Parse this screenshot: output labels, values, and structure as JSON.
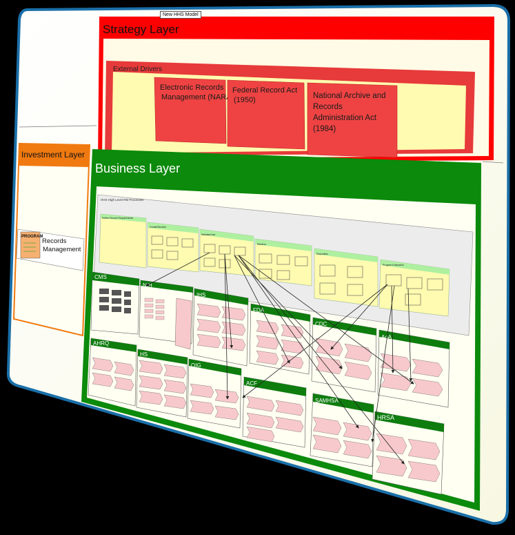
{
  "diagram": {
    "tooltip": "New HHS Model",
    "strategy": {
      "title": "Strategy Layer",
      "drivers_title": "External Drivers",
      "drivers": [
        [
          "Electronic Records",
          "Management (NARA)"
        ],
        [
          "Federal Record Act",
          "(1950)"
        ],
        [
          "National Archive and",
          " Records",
          "Administration Act",
          "(1984)"
        ]
      ]
    },
    "investment": {
      "title": "Investment Layer",
      "program_badge": "PROGRAM",
      "program_label": [
        "Records",
        "Management"
      ]
    },
    "business": {
      "title": "Business Layer",
      "processes_title": "HHS High Level RM Processes",
      "phases": [
        "Define Record Requirements",
        "Create/Receive",
        "Maintain/Use",
        "Retrieve",
        "Disposition",
        "Program Evaluation"
      ],
      "agencies": [
        "CMS",
        "NIH",
        "IHS",
        "FDA",
        "CDC",
        "AoA",
        "AHRQ",
        "HS",
        "OIG",
        "ACF",
        "SAMHSA",
        "HRSA"
      ]
    },
    "colors": {
      "frame": "#fffff0",
      "frame_border": "#1a6fa8",
      "strategy": "#ff0000",
      "strategy_pale": "#fffbe6",
      "drivers_band": "#e73a3a",
      "driver_box": "#ef4343",
      "investment": "#f07a10",
      "business": "#0b8a0b",
      "process_yellow": "#fffbb0",
      "process_header": "#aef0a0",
      "agency_header": "#0e7d0e",
      "chevron": "#f8c9cc"
    }
  }
}
